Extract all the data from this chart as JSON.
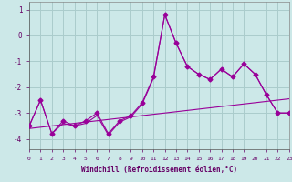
{
  "xlabel": "Windchill (Refroidissement éolien,°C)",
  "x_values": [
    0,
    1,
    2,
    3,
    4,
    5,
    6,
    7,
    8,
    9,
    10,
    11,
    12,
    13,
    14,
    15,
    16,
    17,
    18,
    19,
    20,
    21,
    22,
    23
  ],
  "y_main": [
    -3.5,
    -2.5,
    -3.8,
    -3.3,
    -3.5,
    -3.3,
    -3.0,
    -3.8,
    -3.3,
    -3.1,
    -2.6,
    -1.6,
    0.8,
    -0.3,
    -1.2,
    -1.5,
    -1.7,
    -1.3,
    -1.6,
    -1.1,
    -1.5,
    -2.3,
    -3.0,
    -3.0
  ],
  "y_trend": [
    -3.6,
    -3.55,
    -3.5,
    -3.45,
    -3.4,
    -3.35,
    -3.3,
    -3.25,
    -3.2,
    -3.15,
    -3.1,
    -3.05,
    -3.0,
    -2.95,
    -2.9,
    -2.85,
    -2.8,
    -2.75,
    -2.7,
    -2.65,
    -2.6,
    -2.55,
    -2.5,
    -2.45
  ],
  "y_extra": [
    -3.5,
    -2.5,
    -3.8,
    -3.4,
    -3.5,
    -3.4,
    -3.1,
    -3.85,
    -3.35,
    -3.15,
    -2.65,
    -1.65,
    0.8,
    -0.3,
    -1.2,
    -1.5,
    -1.7,
    -1.3,
    -1.6,
    -1.1,
    -1.5,
    -2.3,
    -3.0,
    -3.0
  ],
  "ylim": [
    -4.4,
    1.3
  ],
  "yticks": [
    -4,
    -3,
    -2,
    -1,
    0,
    1
  ],
  "xlim": [
    0,
    23
  ],
  "bg_color": "#cce8e8",
  "grid_color": "#aacccc",
  "line_color": "#990099",
  "tick_label_color": "#660066",
  "font_family": "monospace"
}
